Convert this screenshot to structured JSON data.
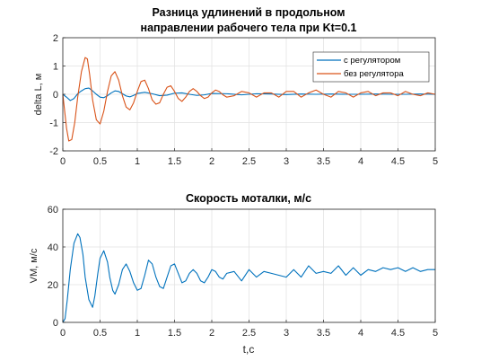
{
  "chart_data": [
    {
      "type": "line",
      "title_lines": [
        "Разница удлинений в продольном",
        "направлении рабочего тела при Kt=0.1"
      ],
      "xlabel": "",
      "ylabel": "delta L, м",
      "xlim": [
        0,
        5
      ],
      "ylim": [
        -2,
        2
      ],
      "xticks": [
        "0",
        "0.5",
        "1",
        "1.5",
        "2",
        "2.5",
        "3",
        "3.5",
        "4",
        "4.5",
        "5"
      ],
      "yticks": [
        "-2",
        "-1",
        "0",
        "1",
        "2"
      ],
      "grid": true,
      "legend_position": "top-right",
      "series": [
        {
          "name": "с регулятором",
          "color": "#0072BD",
          "x": [
            0,
            0.05,
            0.1,
            0.15,
            0.2,
            0.25,
            0.3,
            0.35,
            0.4,
            0.45,
            0.5,
            0.55,
            0.6,
            0.65,
            0.7,
            0.75,
            0.8,
            0.85,
            0.9,
            0.95,
            1.0,
            1.1,
            1.2,
            1.3,
            1.4,
            1.5,
            1.6,
            1.7,
            1.8,
            1.9,
            2.0,
            2.2,
            2.4,
            2.6,
            2.8,
            3.0,
            3.2,
            3.4,
            3.6,
            3.8,
            4.0,
            4.2,
            4.4,
            4.6,
            4.8,
            5.0
          ],
          "values": [
            0,
            -0.1,
            -0.22,
            -0.15,
            0.02,
            0.12,
            0.2,
            0.22,
            0.12,
            0,
            -0.1,
            -0.12,
            -0.05,
            0.05,
            0.12,
            0.1,
            0.02,
            -0.06,
            -0.09,
            -0.04,
            0.03,
            0.07,
            0.02,
            -0.05,
            -0.03,
            0.04,
            0.05,
            0,
            -0.04,
            -0.02,
            0.03,
            0.02,
            -0.02,
            0.02,
            0.01,
            -0.01,
            0.01,
            0,
            0.01,
            0,
            0,
            0.01,
            0,
            0,
            0.01,
            0
          ]
        },
        {
          "name": "без регулятора",
          "color": "#D95319",
          "x": [
            0,
            0.05,
            0.08,
            0.12,
            0.16,
            0.2,
            0.25,
            0.3,
            0.33,
            0.36,
            0.4,
            0.45,
            0.5,
            0.55,
            0.6,
            0.65,
            0.7,
            0.75,
            0.8,
            0.85,
            0.9,
            0.95,
            1.0,
            1.05,
            1.1,
            1.15,
            1.2,
            1.25,
            1.3,
            1.35,
            1.4,
            1.45,
            1.5,
            1.55,
            1.6,
            1.65,
            1.7,
            1.75,
            1.8,
            1.85,
            1.9,
            1.95,
            2.0,
            2.05,
            2.1,
            2.15,
            2.2,
            2.3,
            2.4,
            2.5,
            2.6,
            2.7,
            2.8,
            2.9,
            3.0,
            3.1,
            3.2,
            3.3,
            3.4,
            3.5,
            3.6,
            3.7,
            3.8,
            3.9,
            4.0,
            4.1,
            4.2,
            4.3,
            4.4,
            4.5,
            4.6,
            4.7,
            4.8,
            4.9,
            5.0
          ],
          "values": [
            0,
            -1.2,
            -1.65,
            -1.6,
            -1.0,
            -0.1,
            0.8,
            1.3,
            1.25,
            0.7,
            -0.2,
            -0.9,
            -1.05,
            -0.6,
            0.1,
            0.65,
            0.8,
            0.5,
            -0.05,
            -0.45,
            -0.55,
            -0.3,
            0.1,
            0.45,
            0.5,
            0.2,
            -0.2,
            -0.35,
            -0.3,
            0,
            0.25,
            0.3,
            0.1,
            -0.15,
            -0.25,
            -0.1,
            0.1,
            0.2,
            0.1,
            -0.05,
            -0.15,
            -0.1,
            0.05,
            0.15,
            0.1,
            -0.02,
            -0.1,
            -0.05,
            0.1,
            0.05,
            -0.1,
            0.05,
            0.05,
            -0.1,
            0.1,
            0.1,
            -0.1,
            0.05,
            0.15,
            0,
            -0.1,
            0.1,
            0.05,
            -0.1,
            0.05,
            0.1,
            -0.05,
            0.05,
            0.05,
            -0.05,
            0.1,
            0,
            -0.05,
            0.05,
            0
          ]
        }
      ]
    },
    {
      "type": "line",
      "title_lines": [
        "Скорость моталки, м/с"
      ],
      "xlabel": "t,с",
      "ylabel": "VM, м/с",
      "xlim": [
        0,
        5
      ],
      "ylim": [
        0,
        60
      ],
      "xticks": [
        "0",
        "0.5",
        "1",
        "1.5",
        "2",
        "2.5",
        "3",
        "3.5",
        "4",
        "4.5",
        "5"
      ],
      "yticks": [
        "0",
        "20",
        "40",
        "60"
      ],
      "grid": true,
      "series": [
        {
          "name": "",
          "color": "#0072BD",
          "x": [
            0,
            0.03,
            0.06,
            0.1,
            0.15,
            0.2,
            0.23,
            0.27,
            0.3,
            0.35,
            0.4,
            0.43,
            0.47,
            0.5,
            0.55,
            0.6,
            0.63,
            0.67,
            0.7,
            0.75,
            0.8,
            0.85,
            0.9,
            0.95,
            1.0,
            1.05,
            1.1,
            1.15,
            1.2,
            1.25,
            1.3,
            1.35,
            1.4,
            1.45,
            1.5,
            1.55,
            1.6,
            1.65,
            1.7,
            1.75,
            1.8,
            1.85,
            1.9,
            1.95,
            2.0,
            2.05,
            2.1,
            2.15,
            2.2,
            2.3,
            2.4,
            2.5,
            2.6,
            2.7,
            2.8,
            2.9,
            3.0,
            3.1,
            3.2,
            3.3,
            3.4,
            3.5,
            3.6,
            3.7,
            3.8,
            3.9,
            4.0,
            4.1,
            4.2,
            4.3,
            4.4,
            4.5,
            4.6,
            4.7,
            4.8,
            4.9,
            5.0
          ],
          "values": [
            0,
            2,
            12,
            28,
            42,
            47,
            45,
            36,
            24,
            12,
            8,
            14,
            26,
            34,
            38,
            32,
            24,
            17,
            15,
            20,
            28,
            31,
            27,
            21,
            17,
            18,
            25,
            33,
            31,
            24,
            19,
            18,
            24,
            30,
            31,
            26,
            21,
            22,
            26,
            28,
            26,
            22,
            21,
            24,
            28,
            27,
            24,
            23,
            26,
            27,
            22,
            28,
            24,
            27,
            26,
            25,
            24,
            28,
            24,
            30,
            26,
            27,
            26,
            30,
            25,
            29,
            25,
            28,
            27,
            29,
            28,
            29,
            27,
            29,
            27,
            28,
            28
          ]
        }
      ]
    }
  ]
}
